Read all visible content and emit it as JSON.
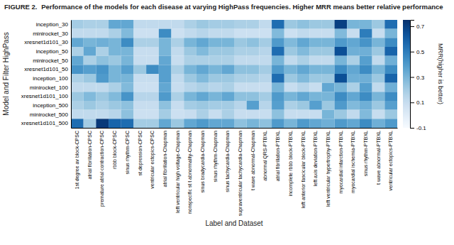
{
  "chart_data": {
    "type": "heatmap",
    "title": "FIGURE 2.",
    "subtitle": "Performance of the models for each disease at varying HighPass frequencies. Higher MRR means better relative performance",
    "x_label": "Label and Dataset",
    "y_label": "Model and Filter HighPass",
    "categories": [
      "1st degree av block-CPSC",
      "atrial fibrillation-CPSC",
      "premature atrial contraction-CPSC",
      "rbbb block-CPSC",
      "sinus rhythm-CPSC",
      "st depression-CPSC",
      "ventricular ectopics-CPSC",
      "atrial fibrillation-Chapman",
      "left ventricular high voltage-Chapman",
      "nonspecific st t abnormality-Chapman",
      "sinus bradycardia-Chapman",
      "sinus rhythm-Chapman",
      "sinus tachycardia-Chapman",
      "supraventricular tachycardia-Chapman",
      "t wave abnormal-Chapman",
      "abnormal QRS-PTBXL",
      "atrial fibrillation-PTBXL",
      "incomplete rbbb block-PTBXL",
      "left anterior fascicular block-PTBXL",
      "left axis deviation-PTBXL",
      "left ventricular hypertrophy-PTBXL",
      "myocardial infarction-PTBXL",
      "myocardial ischemia-PTBXL",
      "sinus rhythm-PTBXL",
      "t wave abnormal-PTBXL",
      "ventricular ectopics-PTBXL"
    ],
    "rows": [
      "inception_30",
      "minirocket_30",
      "xresnet1d101_30",
      "inception_50",
      "minirocket_50",
      "xresnet1d101_50",
      "inception_100",
      "minirocket_100",
      "xresnet1d101_100",
      "inception_500",
      "minirocket_500",
      "xresnet1d101_500"
    ],
    "values": [
      [
        0.2,
        0.18,
        0.18,
        0.35,
        0.35,
        0.12,
        0.12,
        0.12,
        0.12,
        0.18,
        0.22,
        0.2,
        0.2,
        0.18,
        0.18,
        0.12,
        0.55,
        0.22,
        0.25,
        0.22,
        0.22,
        0.7,
        0.3,
        0.3,
        0.22,
        0.55
      ],
      [
        0.12,
        0.12,
        0.12,
        0.18,
        0.28,
        0.08,
        0.08,
        0.45,
        0.08,
        0.12,
        0.15,
        0.12,
        0.12,
        0.08,
        0.08,
        0.08,
        0.28,
        0.08,
        0.12,
        0.1,
        0.1,
        0.28,
        0.1,
        0.5,
        0.1,
        0.3
      ],
      [
        0.35,
        0.3,
        0.32,
        0.3,
        0.45,
        0.18,
        0.18,
        0.3,
        0.18,
        0.3,
        0.35,
        0.3,
        0.3,
        0.22,
        0.25,
        0.2,
        0.4,
        0.28,
        0.35,
        0.3,
        0.3,
        0.4,
        0.35,
        0.42,
        0.3,
        0.45
      ],
      [
        0.18,
        0.35,
        0.18,
        0.3,
        0.3,
        0.1,
        0.1,
        0.3,
        0.12,
        0.22,
        0.28,
        0.22,
        0.22,
        0.18,
        0.18,
        0.15,
        0.55,
        0.22,
        0.28,
        0.22,
        0.22,
        0.65,
        0.32,
        0.32,
        0.22,
        0.58
      ],
      [
        0.35,
        0.18,
        0.25,
        0.22,
        0.3,
        0.1,
        0.1,
        0.35,
        0.1,
        0.18,
        0.18,
        0.18,
        0.18,
        0.12,
        0.12,
        0.12,
        0.3,
        0.12,
        0.18,
        0.12,
        0.12,
        0.3,
        0.18,
        0.38,
        0.12,
        0.32
      ],
      [
        0.42,
        0.38,
        0.42,
        0.3,
        0.38,
        0.22,
        0.45,
        0.38,
        0.18,
        0.3,
        0.35,
        0.3,
        0.35,
        0.25,
        0.25,
        0.2,
        0.4,
        0.3,
        0.35,
        0.3,
        0.3,
        0.45,
        0.35,
        0.45,
        0.3,
        0.45
      ],
      [
        0.18,
        0.22,
        0.4,
        0.3,
        0.3,
        0.1,
        0.1,
        0.38,
        0.12,
        0.22,
        0.28,
        0.22,
        0.22,
        0.18,
        0.18,
        0.15,
        0.55,
        0.22,
        0.28,
        0.22,
        0.22,
        0.65,
        0.32,
        0.32,
        0.22,
        0.58
      ],
      [
        0.12,
        0.12,
        0.12,
        0.18,
        0.28,
        0.08,
        0.08,
        0.35,
        0.1,
        0.15,
        0.18,
        0.15,
        0.18,
        0.1,
        0.1,
        0.1,
        0.3,
        0.1,
        0.15,
        0.1,
        0.35,
        0.3,
        0.18,
        0.38,
        0.12,
        0.32
      ],
      [
        0.22,
        0.28,
        0.22,
        0.28,
        0.42,
        0.15,
        0.15,
        0.4,
        0.18,
        0.3,
        0.35,
        0.3,
        0.35,
        0.25,
        0.25,
        0.2,
        0.4,
        0.3,
        0.35,
        0.3,
        0.3,
        0.45,
        0.35,
        0.45,
        0.3,
        0.45
      ],
      [
        0.18,
        0.22,
        0.18,
        0.22,
        0.25,
        0.1,
        0.1,
        0.25,
        0.1,
        0.2,
        0.22,
        0.2,
        0.2,
        0.15,
        0.38,
        0.15,
        0.38,
        0.18,
        0.22,
        0.38,
        0.22,
        0.4,
        0.28,
        0.32,
        0.22,
        0.38
      ],
      [
        0.12,
        0.12,
        0.12,
        0.15,
        0.25,
        0.08,
        0.08,
        0.2,
        0.08,
        0.1,
        0.18,
        0.1,
        0.18,
        0.1,
        0.1,
        0.1,
        0.25,
        0.1,
        0.1,
        0.1,
        0.3,
        0.22,
        0.12,
        0.28,
        0.1,
        0.22
      ],
      [
        0.55,
        0.2,
        0.72,
        0.58,
        0.55,
        0.2,
        0.2,
        0.35,
        0.22,
        0.35,
        0.4,
        0.35,
        0.35,
        0.25,
        0.3,
        0.25,
        0.4,
        0.3,
        0.4,
        0.35,
        0.32,
        0.4,
        0.35,
        0.45,
        0.32,
        0.4
      ]
    ],
    "colorbar_label": "MRR(higher is better)",
    "colorbar_range": [
      -0.1,
      0.75
    ],
    "colorbar_ticks": [
      -0.1,
      0.1,
      0.3,
      0.5,
      0.7
    ]
  }
}
